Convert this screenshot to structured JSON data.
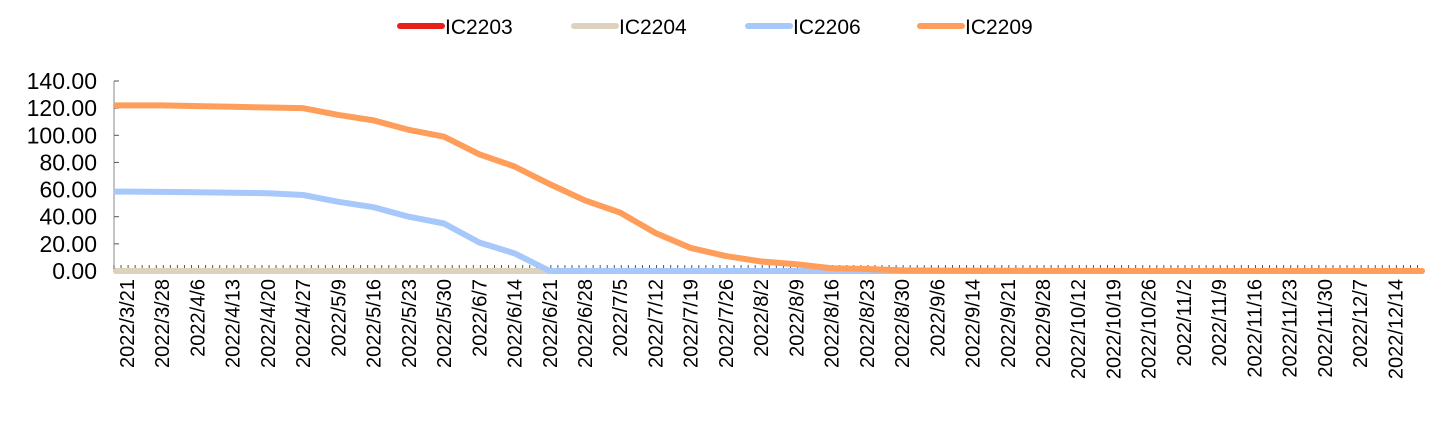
{
  "chart_data": {
    "type": "line",
    "title": "",
    "xlabel": "",
    "ylabel": "",
    "ylim": [
      0,
      140
    ],
    "yticks": [
      "0.00",
      "20.00",
      "40.00",
      "60.00",
      "80.00",
      "100.00",
      "120.00",
      "140.00"
    ],
    "grid": false,
    "legend_position": "top-center",
    "categories": [
      "2022/3/21",
      "2022/3/28",
      "2022/4/6",
      "2022/4/13",
      "2022/4/20",
      "2022/4/27",
      "2022/5/9",
      "2022/5/16",
      "2022/5/23",
      "2022/5/30",
      "2022/6/7",
      "2022/6/14",
      "2022/6/21",
      "2022/6/28",
      "2022/7/5",
      "2022/7/12",
      "2022/7/19",
      "2022/7/26",
      "2022/8/2",
      "2022/8/9",
      "2022/8/16",
      "2022/8/23",
      "2022/8/30",
      "2022/9/6",
      "2022/9/14",
      "2022/9/21",
      "2022/9/28",
      "2022/10/12",
      "2022/10/19",
      "2022/10/26",
      "2022/11/2",
      "2022/11/9",
      "2022/11/16",
      "2022/11/23",
      "2022/11/30",
      "2022/12/7",
      "2022/12/14"
    ],
    "series": [
      {
        "name": "IC2203",
        "color": "#e8201c",
        "values": [
          0,
          0,
          0,
          null,
          null,
          null,
          null,
          null,
          null,
          null,
          null,
          null,
          null,
          null,
          null,
          null,
          null,
          null,
          null,
          null,
          null,
          null,
          null,
          null,
          null,
          null,
          null,
          null,
          null,
          null,
          null,
          null,
          null,
          null,
          null,
          null,
          null
        ]
      },
      {
        "name": "IC2204",
        "color": "#ddd3bd",
        "values": [
          0,
          0,
          0,
          0,
          0,
          0,
          0,
          0,
          0,
          0,
          0,
          0,
          0,
          null,
          null,
          null,
          null,
          null,
          null,
          null,
          null,
          null,
          null,
          null,
          null,
          null,
          null,
          null,
          null,
          null,
          null,
          null,
          null,
          null,
          null,
          null,
          null
        ]
      },
      {
        "name": "IC2206",
        "color": "#a6c8fb",
        "values": [
          58.5,
          58.3,
          58,
          57.7,
          57.3,
          56,
          51,
          47,
          40,
          35,
          21,
          13,
          0,
          0,
          0,
          0,
          0,
          0,
          0,
          0,
          0,
          0,
          0,
          0,
          0,
          0,
          0,
          0,
          0,
          0,
          0,
          0,
          0,
          0,
          0,
          0,
          0
        ]
      },
      {
        "name": "IC2209",
        "color": "#ff9e5a",
        "values": [
          122,
          122,
          121.5,
          121,
          120.5,
          120,
          115,
          111,
          104,
          99,
          86,
          77,
          64,
          52,
          43,
          28,
          17,
          11,
          7,
          5,
          2,
          1.5,
          0.5,
          0.3,
          0.2,
          0.2,
          0.1,
          0.1,
          0.1,
          0,
          0,
          0,
          0,
          0,
          0,
          0,
          0
        ]
      }
    ]
  }
}
